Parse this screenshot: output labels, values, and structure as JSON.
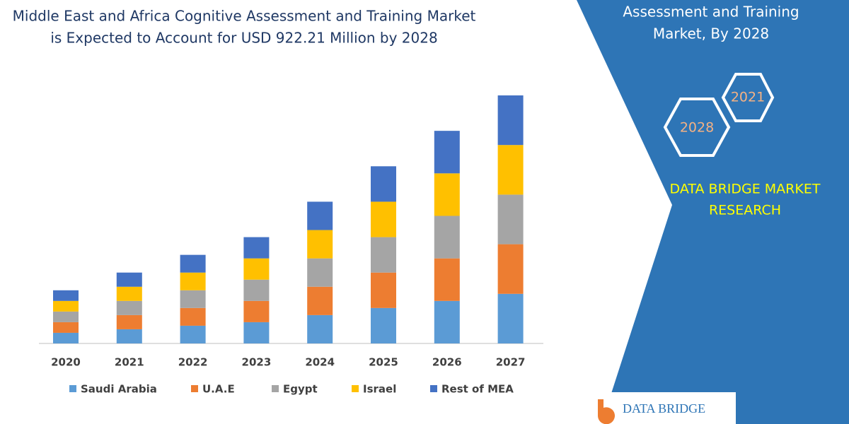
{
  "chart_data": {
    "type": "stacked-bar",
    "title": [
      "Middle East and Africa Cognitive Assessment and Training Market",
      "is Expected to Account for USD 922.21 Million  by 2028"
    ],
    "categories": [
      "2020",
      "2021",
      "2022",
      "2023",
      "2024",
      "2025",
      "2026",
      "2027"
    ],
    "series": [
      {
        "name": "Saudi Arabia",
        "color": "#5b9bd5",
        "values": [
          15,
          20,
          25,
          30,
          40,
          50,
          60,
          70
        ]
      },
      {
        "name": "U.A.E",
        "color": "#ed7d31",
        "values": [
          15,
          20,
          25,
          30,
          40,
          50,
          60,
          70
        ]
      },
      {
        "name": "Egypt",
        "color": "#a5a5a5",
        "values": [
          15,
          20,
          25,
          30,
          40,
          50,
          60,
          70
        ]
      },
      {
        "name": "Israel",
        "color": "#ffc000",
        "values": [
          15,
          20,
          25,
          30,
          40,
          50,
          60,
          70
        ]
      },
      {
        "name": "Rest of MEA",
        "color": "#4472c4",
        "values": [
          15,
          20,
          25,
          30,
          40,
          50,
          60,
          70
        ]
      }
    ],
    "legend": "bottom"
  },
  "panel": {
    "heading": [
      "Assessment and Training",
      "Market, By 2028"
    ],
    "hexagons": [
      "2021",
      "2028"
    ],
    "brand": [
      "DATA BRIDGE MARKET",
      "RESEARCH"
    ],
    "logo": "DATA BRIDGE"
  }
}
